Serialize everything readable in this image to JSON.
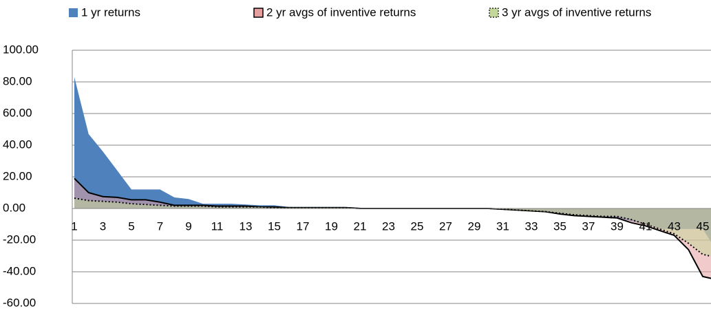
{
  "chart_data": {
    "type": "area",
    "categories": [
      1,
      null,
      3,
      null,
      5,
      null,
      7,
      null,
      9,
      null,
      11,
      null,
      13,
      null,
      15,
      null,
      17,
      null,
      19,
      null,
      21,
      null,
      23,
      null,
      25,
      null,
      27,
      null,
      29,
      null,
      31,
      null,
      33,
      null,
      35,
      null,
      37,
      null,
      39,
      null,
      41,
      null,
      43,
      null,
      45,
      null
    ],
    "series": [
      {
        "name": "1 yr returns",
        "color": "#4f81bd",
        "values": [
          83,
          47,
          36,
          24,
          12,
          12,
          12,
          7,
          6,
          3,
          3,
          3,
          2.5,
          2,
          2,
          1,
          1,
          1,
          1,
          1,
          0.5,
          0,
          0,
          0,
          0,
          0,
          0,
          0,
          0,
          0,
          -0.5,
          -1,
          -1.5,
          -2,
          -3,
          -4,
          -4.5,
          -5,
          -6,
          -8,
          -10,
          -13,
          -13,
          -13,
          -13,
          -27
        ]
      },
      {
        "name": "2 yr avgs of inventive returns",
        "color": "#e6a0a0",
        "values": [
          19,
          10,
          7.5,
          7,
          5.5,
          5.5,
          4,
          2,
          2,
          2,
          1.5,
          1.5,
          1.5,
          1,
          1,
          0.5,
          0.5,
          0.5,
          0.5,
          0.5,
          0,
          0,
          0,
          0,
          0,
          0,
          0,
          0,
          0,
          0,
          -0.5,
          -1,
          -1.5,
          -2,
          -3.5,
          -4.5,
          -5,
          -5.5,
          -6,
          -9,
          -11,
          -14,
          -17,
          -26,
          -43,
          -45
        ]
      },
      {
        "name": "3 yr avgs of inventive returns",
        "color": "#c4d79b",
        "values": [
          6.5,
          5,
          4.5,
          4,
          3,
          2.5,
          2,
          1.5,
          1.5,
          1.5,
          1,
          1,
          1,
          1,
          0.5,
          0.5,
          0.5,
          0.5,
          0.5,
          0.5,
          0,
          0,
          0,
          0,
          0,
          0,
          0,
          0,
          0,
          0,
          -0.5,
          -1,
          -1.5,
          -2,
          -3,
          -4,
          -4.5,
          -5,
          -5,
          -7,
          -10,
          -13,
          -16,
          -22,
          -29,
          -31
        ]
      }
    ],
    "ylim": [
      -60,
      100
    ],
    "yticks": [
      {
        "value": -60,
        "label": "-60.00"
      },
      {
        "value": -40,
        "label": "-40.00"
      },
      {
        "value": -20,
        "label": "-20.00"
      },
      {
        "value": 0,
        "label": "0.00"
      },
      {
        "value": 20,
        "label": "20.00"
      },
      {
        "value": 40,
        "label": "40.00"
      },
      {
        "value": 60,
        "label": "60.00"
      },
      {
        "value": 80,
        "label": "80.00"
      },
      {
        "value": 100,
        "label": "100.00"
      }
    ],
    "grid": true,
    "legend": "top"
  }
}
